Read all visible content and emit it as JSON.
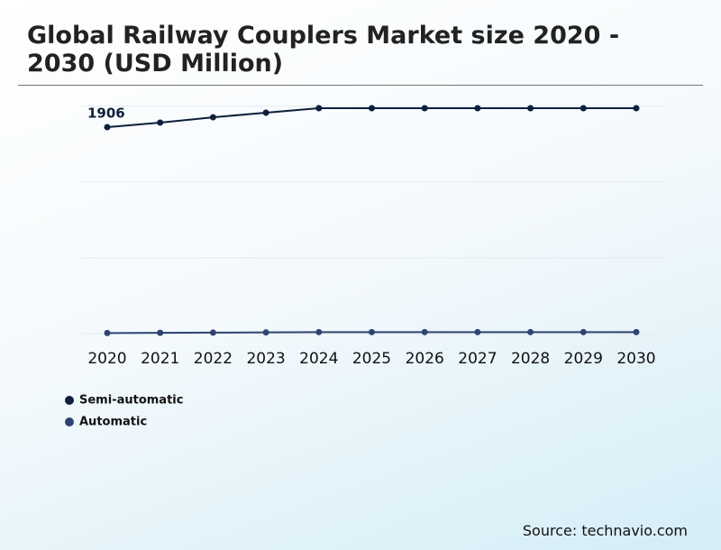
{
  "chart_data": {
    "type": "line",
    "title": "Global Railway Couplers Market size 2020 - 2030 (USD Million)",
    "categories": [
      "2020",
      "2021",
      "2022",
      "2023",
      "2024",
      "2025",
      "2026",
      "2027",
      "2028",
      "2029",
      "2030"
    ],
    "series": [
      {
        "name": "Semi-automatic",
        "color": "#0d1f3c",
        "values": [
          1906,
          1948,
          1997,
          2039,
          2081,
          2081,
          2081,
          2081,
          2081,
          2081,
          2081
        ]
      },
      {
        "name": "Automatic",
        "color": "#2f4470",
        "values": [
          5,
          7,
          9,
          11,
          14,
          14,
          14,
          14,
          14,
          14,
          14
        ]
      }
    ],
    "ylim": [
      0,
      2100
    ],
    "yticks": [
      0,
      700,
      1400,
      2100
    ],
    "grid": true,
    "source": "Source: technavio.com"
  }
}
